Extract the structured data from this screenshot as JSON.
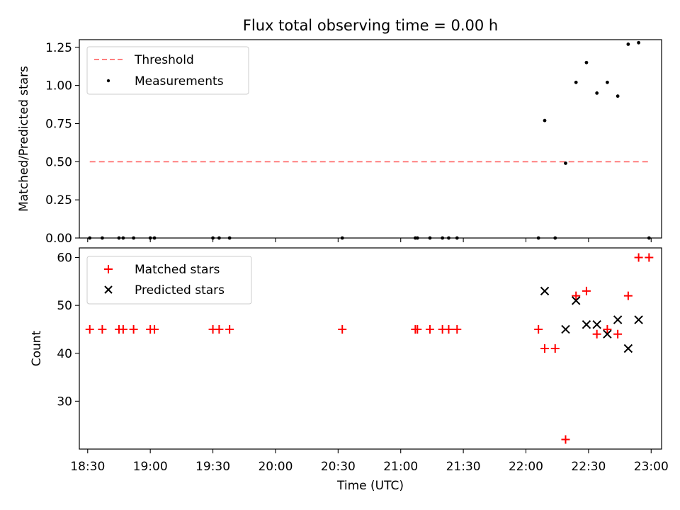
{
  "chart_data": {
    "title": "Flux total observing time = 0.00 h",
    "xlabel": "Time (UTC)",
    "x_ticks": [
      "18:30",
      "19:00",
      "19:30",
      "20:00",
      "20:30",
      "21:00",
      "21:30",
      "22:00",
      "22:30",
      "23:00"
    ],
    "x_range": [
      "18:26",
      "23:05"
    ],
    "panels": [
      {
        "type": "scatter",
        "ylabel": "Matched/Predicted stars",
        "ylim": [
          0,
          1.3
        ],
        "y_ticks": [
          "0.00",
          "0.25",
          "0.50",
          "0.75",
          "1.00",
          "1.25"
        ],
        "legend_position": "upper-left",
        "series": [
          {
            "name": "Threshold",
            "kind": "line",
            "style": "dashed",
            "color": "#ff7f7f",
            "x": [
              "18:31",
              "22:59"
            ],
            "y": [
              0.5,
              0.5
            ]
          },
          {
            "name": "Measurements",
            "kind": "dot",
            "color": "#000000",
            "x": [
              "18:31",
              "18:37",
              "18:45",
              "18:47",
              "18:52",
              "19:00",
              "19:02",
              "19:30",
              "19:33",
              "19:38",
              "20:32",
              "21:07",
              "21:08",
              "21:14",
              "21:20",
              "21:23",
              "21:27",
              "22:06",
              "22:09",
              "22:14",
              "22:19",
              "22:24",
              "22:29",
              "22:34",
              "22:39",
              "22:44",
              "22:49",
              "22:54",
              "22:59"
            ],
            "y": [
              0,
              0,
              0,
              0,
              0,
              0,
              0,
              0,
              0,
              0,
              0,
              0,
              0,
              0,
              0,
              0,
              0,
              0,
              0.77,
              0,
              0.49,
              1.02,
              1.15,
              0.95,
              1.02,
              0.93,
              1.27,
              1.28,
              0
            ]
          }
        ]
      },
      {
        "type": "scatter",
        "ylabel": "Count",
        "ylim": [
          20,
          62
        ],
        "y_ticks": [
          "30",
          "40",
          "50",
          "60"
        ],
        "legend_position": "upper-left",
        "series": [
          {
            "name": "Matched stars",
            "kind": "plus",
            "color": "#ff0000",
            "x": [
              "18:31",
              "18:37",
              "18:45",
              "18:47",
              "18:52",
              "19:00",
              "19:02",
              "19:30",
              "19:33",
              "19:38",
              "20:32",
              "21:07",
              "21:08",
              "21:14",
              "21:20",
              "21:23",
              "21:27",
              "22:06",
              "22:09",
              "22:14",
              "22:19",
              "22:24",
              "22:29",
              "22:34",
              "22:39",
              "22:44",
              "22:49",
              "22:54",
              "22:59"
            ],
            "y": [
              45,
              45,
              45,
              45,
              45,
              45,
              45,
              45,
              45,
              45,
              45,
              45,
              45,
              45,
              45,
              45,
              45,
              45,
              41,
              41,
              22,
              52,
              53,
              44,
              45,
              44,
              52,
              60,
              60
            ]
          },
          {
            "name": "Predicted stars",
            "kind": "x",
            "color": "#000000",
            "x": [
              "22:09",
              "22:19",
              "22:24",
              "22:29",
              "22:34",
              "22:39",
              "22:44",
              "22:49",
              "22:54"
            ],
            "y": [
              53,
              45,
              51,
              46,
              46,
              44,
              47,
              41,
              47
            ]
          }
        ]
      }
    ]
  }
}
